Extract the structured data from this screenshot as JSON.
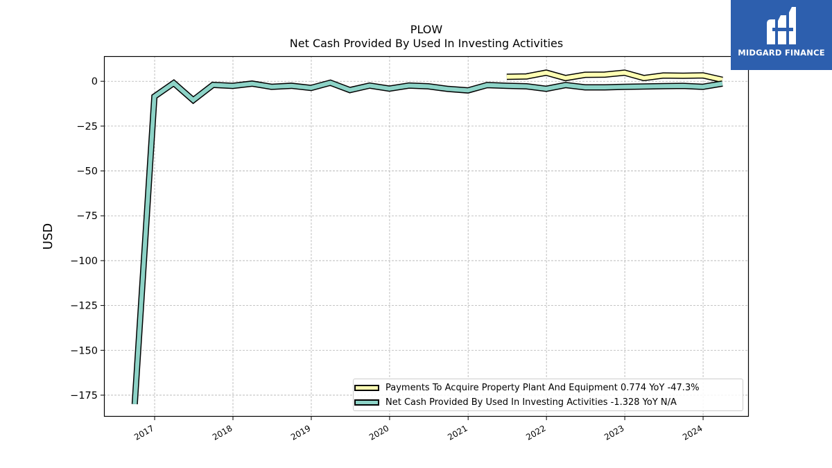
{
  "chart_data": {
    "type": "line",
    "title": "PLOW",
    "subtitle": "Net Cash Provided By Used In Investing Activities",
    "ylabel": "USD",
    "xlabel": "",
    "ylim": [
      -187,
      14
    ],
    "xlim": [
      "2016-05-10",
      "2024-08-01"
    ],
    "yticks": [
      0,
      -25,
      -50,
      -75,
      -100,
      -125,
      -150,
      -175
    ],
    "ytick_labels": [
      "0",
      "−25",
      "−50",
      "−75",
      "−100",
      "−125",
      "−150",
      "−175"
    ],
    "xticks": [
      "2017-01-01",
      "2018-01-01",
      "2019-01-01",
      "2020-01-01",
      "2021-01-01",
      "2022-01-01",
      "2023-01-01",
      "2024-01-01"
    ],
    "xtick_labels": [
      "2017",
      "2018",
      "2019",
      "2020",
      "2021",
      "2022",
      "2023",
      "2024"
    ],
    "grid": true,
    "legend_position": "lower-right",
    "series": [
      {
        "name": "Payments To Acquire Property Plant And Equipment  0.774 YoY -47.3%",
        "color": "#ffffb3",
        "points": [
          [
            "2021-06-30",
            2.5
          ],
          [
            "2021-09-30",
            2.7
          ],
          [
            "2021-12-31",
            4.8
          ],
          [
            "2022-03-31",
            1.8
          ],
          [
            "2022-06-30",
            3.6
          ],
          [
            "2022-09-30",
            3.7
          ],
          [
            "2022-12-31",
            4.8
          ],
          [
            "2023-03-31",
            1.8
          ],
          [
            "2023-06-30",
            3.2
          ],
          [
            "2023-09-30",
            3.1
          ],
          [
            "2023-12-31",
            3.3
          ],
          [
            "2024-03-31",
            0.8
          ]
        ]
      },
      {
        "name": "Net Cash Provided By Used In Investing Activities  -1.328 YoY N/A",
        "color": "#8dd3c7",
        "points": [
          [
            "2016-09-30",
            -180
          ],
          [
            "2016-12-31",
            -8.5
          ],
          [
            "2017-03-31",
            -1
          ],
          [
            "2017-06-30",
            -10.5
          ],
          [
            "2017-09-30",
            -2
          ],
          [
            "2017-12-31",
            -2.6
          ],
          [
            "2018-03-31",
            -1.3
          ],
          [
            "2018-06-30",
            -3.1
          ],
          [
            "2018-09-30",
            -2.5
          ],
          [
            "2018-12-31",
            -3.7
          ],
          [
            "2019-03-31",
            -0.8
          ],
          [
            "2019-06-30",
            -4.9
          ],
          [
            "2019-09-30",
            -2.4
          ],
          [
            "2019-12-31",
            -4.1
          ],
          [
            "2020-03-31",
            -2.4
          ],
          [
            "2020-06-30",
            -2.8
          ],
          [
            "2020-09-30",
            -4.3
          ],
          [
            "2020-12-31",
            -5.1
          ],
          [
            "2021-03-31",
            -2.1
          ],
          [
            "2021-06-30",
            -2.5
          ],
          [
            "2021-09-30",
            -2.8
          ],
          [
            "2021-12-31",
            -4.2
          ],
          [
            "2022-03-31",
            -2.1
          ],
          [
            "2022-06-30",
            -3.4
          ],
          [
            "2022-09-30",
            -3.4
          ],
          [
            "2022-12-31",
            -3.1
          ],
          [
            "2023-03-31",
            -2.9
          ],
          [
            "2023-06-30",
            -2.7
          ],
          [
            "2023-09-30",
            -2.6
          ],
          [
            "2023-12-31",
            -3.1
          ],
          [
            "2024-03-31",
            -1.3
          ]
        ]
      }
    ]
  },
  "logo": {
    "text": "MIDGARD FINANCE",
    "color": "#2d5fae"
  }
}
